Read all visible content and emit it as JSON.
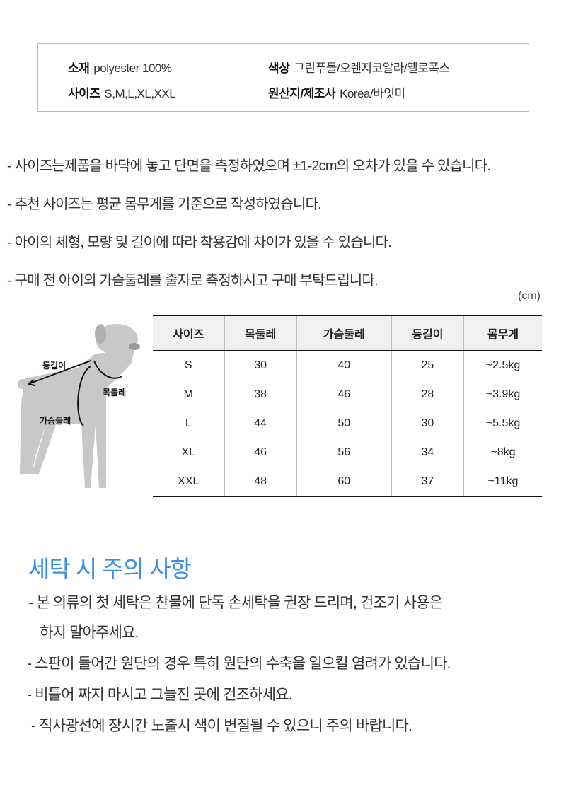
{
  "info": {
    "material_label": "소재",
    "material_value": "polyester 100%",
    "color_label": "색상",
    "color_value": "그린푸들/오렌지코알라/옐로폭스",
    "size_label": "사이즈",
    "size_value": "S,M,L,XL,XXL",
    "origin_label": "원산지/제조사",
    "origin_value": "Korea/바잇미"
  },
  "notes": [
    "- 사이즈는제품을 바닥에 놓고 단면을 측정하였으며 ±1-2cm의 오차가 있을 수 있습니다.",
    "- 추천 사이즈는 평균 몸무게를 기준으로 작성하였습니다.",
    "- 아이의 체형, 모량 및 길이에 따라 착용감에 차이가 있을 수 있습니다.",
    "- 구매 전 아이의 가슴둘레를 줄자로 측정하시고 구매 부탁드립니다."
  ],
  "unit": "(cm)",
  "dog_labels": {
    "back": "등길이",
    "neck": "목둘레",
    "chest": "가슴둘레"
  },
  "size_table": {
    "headers": [
      "사이즈",
      "목둘레",
      "가슴둘레",
      "등길이",
      "몸무게"
    ],
    "rows": [
      [
        "S",
        "30",
        "40",
        "25",
        "~2.5kg"
      ],
      [
        "M",
        "38",
        "46",
        "28",
        "~3.9kg"
      ],
      [
        "L",
        "44",
        "50",
        "30",
        "~5.5kg"
      ],
      [
        "XL",
        "46",
        "56",
        "34",
        "~8kg"
      ],
      [
        "XXL",
        "48",
        "60",
        "37",
        "~11kg"
      ]
    ]
  },
  "care": {
    "title": "세탁 시 주의 사항",
    "title_color": "#3b8fe2",
    "items": [
      "- 본 의류의 첫 세탁은 찬물에 단독 손세탁을 권장 드리며, 건조기 사용은",
      "하지 말아주세요.",
      "- 스판이 들어간 원단의 경우 특히 원단의 수축을 일으킬 염려가 있습니다.",
      "- 비틀어 짜지 마시고 그늘진 곳에 건조하세요.",
      "- 직사광선에 장시간 노출시 색이 변질될 수 있으니 주의 바랍니다."
    ]
  }
}
